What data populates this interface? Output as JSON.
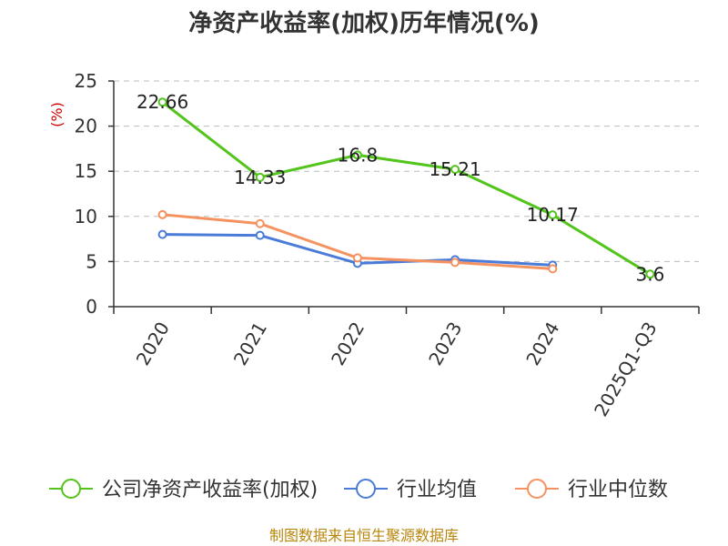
{
  "chart_data": {
    "type": "line",
    "title": "净资产收益率(加权)历年情况(%)",
    "ylabel": "(%)",
    "categories": [
      "2020",
      "2021",
      "2022",
      "2023",
      "2024",
      "2025Q1-Q3"
    ],
    "yticks": [
      "0",
      "5",
      "10",
      "15",
      "20",
      "25"
    ],
    "ylim": [
      0,
      25
    ],
    "grid": true,
    "legend": "bottom",
    "series": [
      {
        "name": "公司净资产收益率(加权)",
        "color": "#52c41a",
        "values": [
          22.66,
          14.33,
          16.8,
          15.21,
          10.17,
          3.6
        ],
        "labels": [
          "22.66",
          "14.33",
          "16.8",
          "15.21",
          "10.17",
          "3.6"
        ]
      },
      {
        "name": "行业均值",
        "color": "#4a7bd8",
        "values": [
          8.0,
          7.9,
          4.8,
          5.2,
          4.6,
          null
        ]
      },
      {
        "name": "行业中位数",
        "color": "#f5925f",
        "values": [
          10.2,
          9.2,
          5.4,
          4.9,
          4.2,
          null
        ]
      }
    ]
  },
  "source": "制图数据来自恒生聚源数据库"
}
